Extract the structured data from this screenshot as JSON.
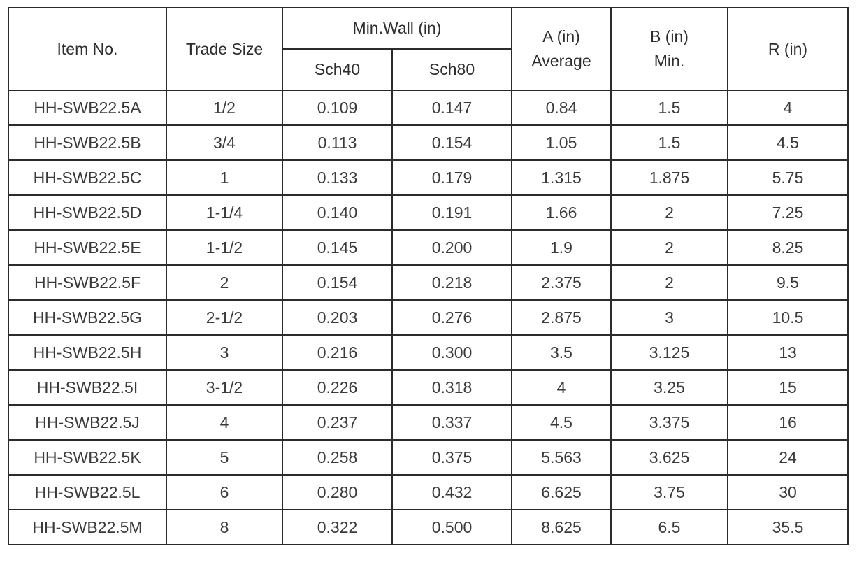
{
  "table": {
    "headers": {
      "item_no": "Item No.",
      "trade_size": "Trade Size",
      "min_wall": "Min.Wall (in)",
      "sch40": "Sch40",
      "sch80": "Sch80",
      "a_line1": "A (in)",
      "a_line2": "Average",
      "b_line1": "B (in)",
      "b_line2": "Min.",
      "r": "R (in)"
    },
    "rows": [
      [
        "HH-SWB22.5A",
        "1/2",
        "0.109",
        "0.147",
        "0.84",
        "1.5",
        "4"
      ],
      [
        "HH-SWB22.5B",
        "3/4",
        "0.113",
        "0.154",
        "1.05",
        "1.5",
        "4.5"
      ],
      [
        "HH-SWB22.5C",
        "1",
        "0.133",
        "0.179",
        "1.315",
        "1.875",
        "5.75"
      ],
      [
        "HH-SWB22.5D",
        "1-1/4",
        "0.140",
        "0.191",
        "1.66",
        "2",
        "7.25"
      ],
      [
        "HH-SWB22.5E",
        "1-1/2",
        "0.145",
        "0.200",
        "1.9",
        "2",
        "8.25"
      ],
      [
        "HH-SWB22.5F",
        "2",
        "0.154",
        "0.218",
        "2.375",
        "2",
        "9.5"
      ],
      [
        "HH-SWB22.5G",
        "2-1/2",
        "0.203",
        "0.276",
        "2.875",
        "3",
        "10.5"
      ],
      [
        "HH-SWB22.5H",
        "3",
        "0.216",
        "0.300",
        "3.5",
        "3.125",
        "13"
      ],
      [
        "HH-SWB22.5I",
        "3-1/2",
        "0.226",
        "0.318",
        "4",
        "3.25",
        "15"
      ],
      [
        "HH-SWB22.5J",
        "4",
        "0.237",
        "0.337",
        "4.5",
        "3.375",
        "16"
      ],
      [
        "HH-SWB22.5K",
        "5",
        "0.258",
        "0.375",
        "5.563",
        "3.625",
        "24"
      ],
      [
        "HH-SWB22.5L",
        "6",
        "0.280",
        "0.432",
        "6.625",
        "3.75",
        "30"
      ],
      [
        "HH-SWB22.5M",
        "8",
        "0.322",
        "0.500",
        "8.625",
        "6.5",
        "35.5"
      ]
    ]
  }
}
